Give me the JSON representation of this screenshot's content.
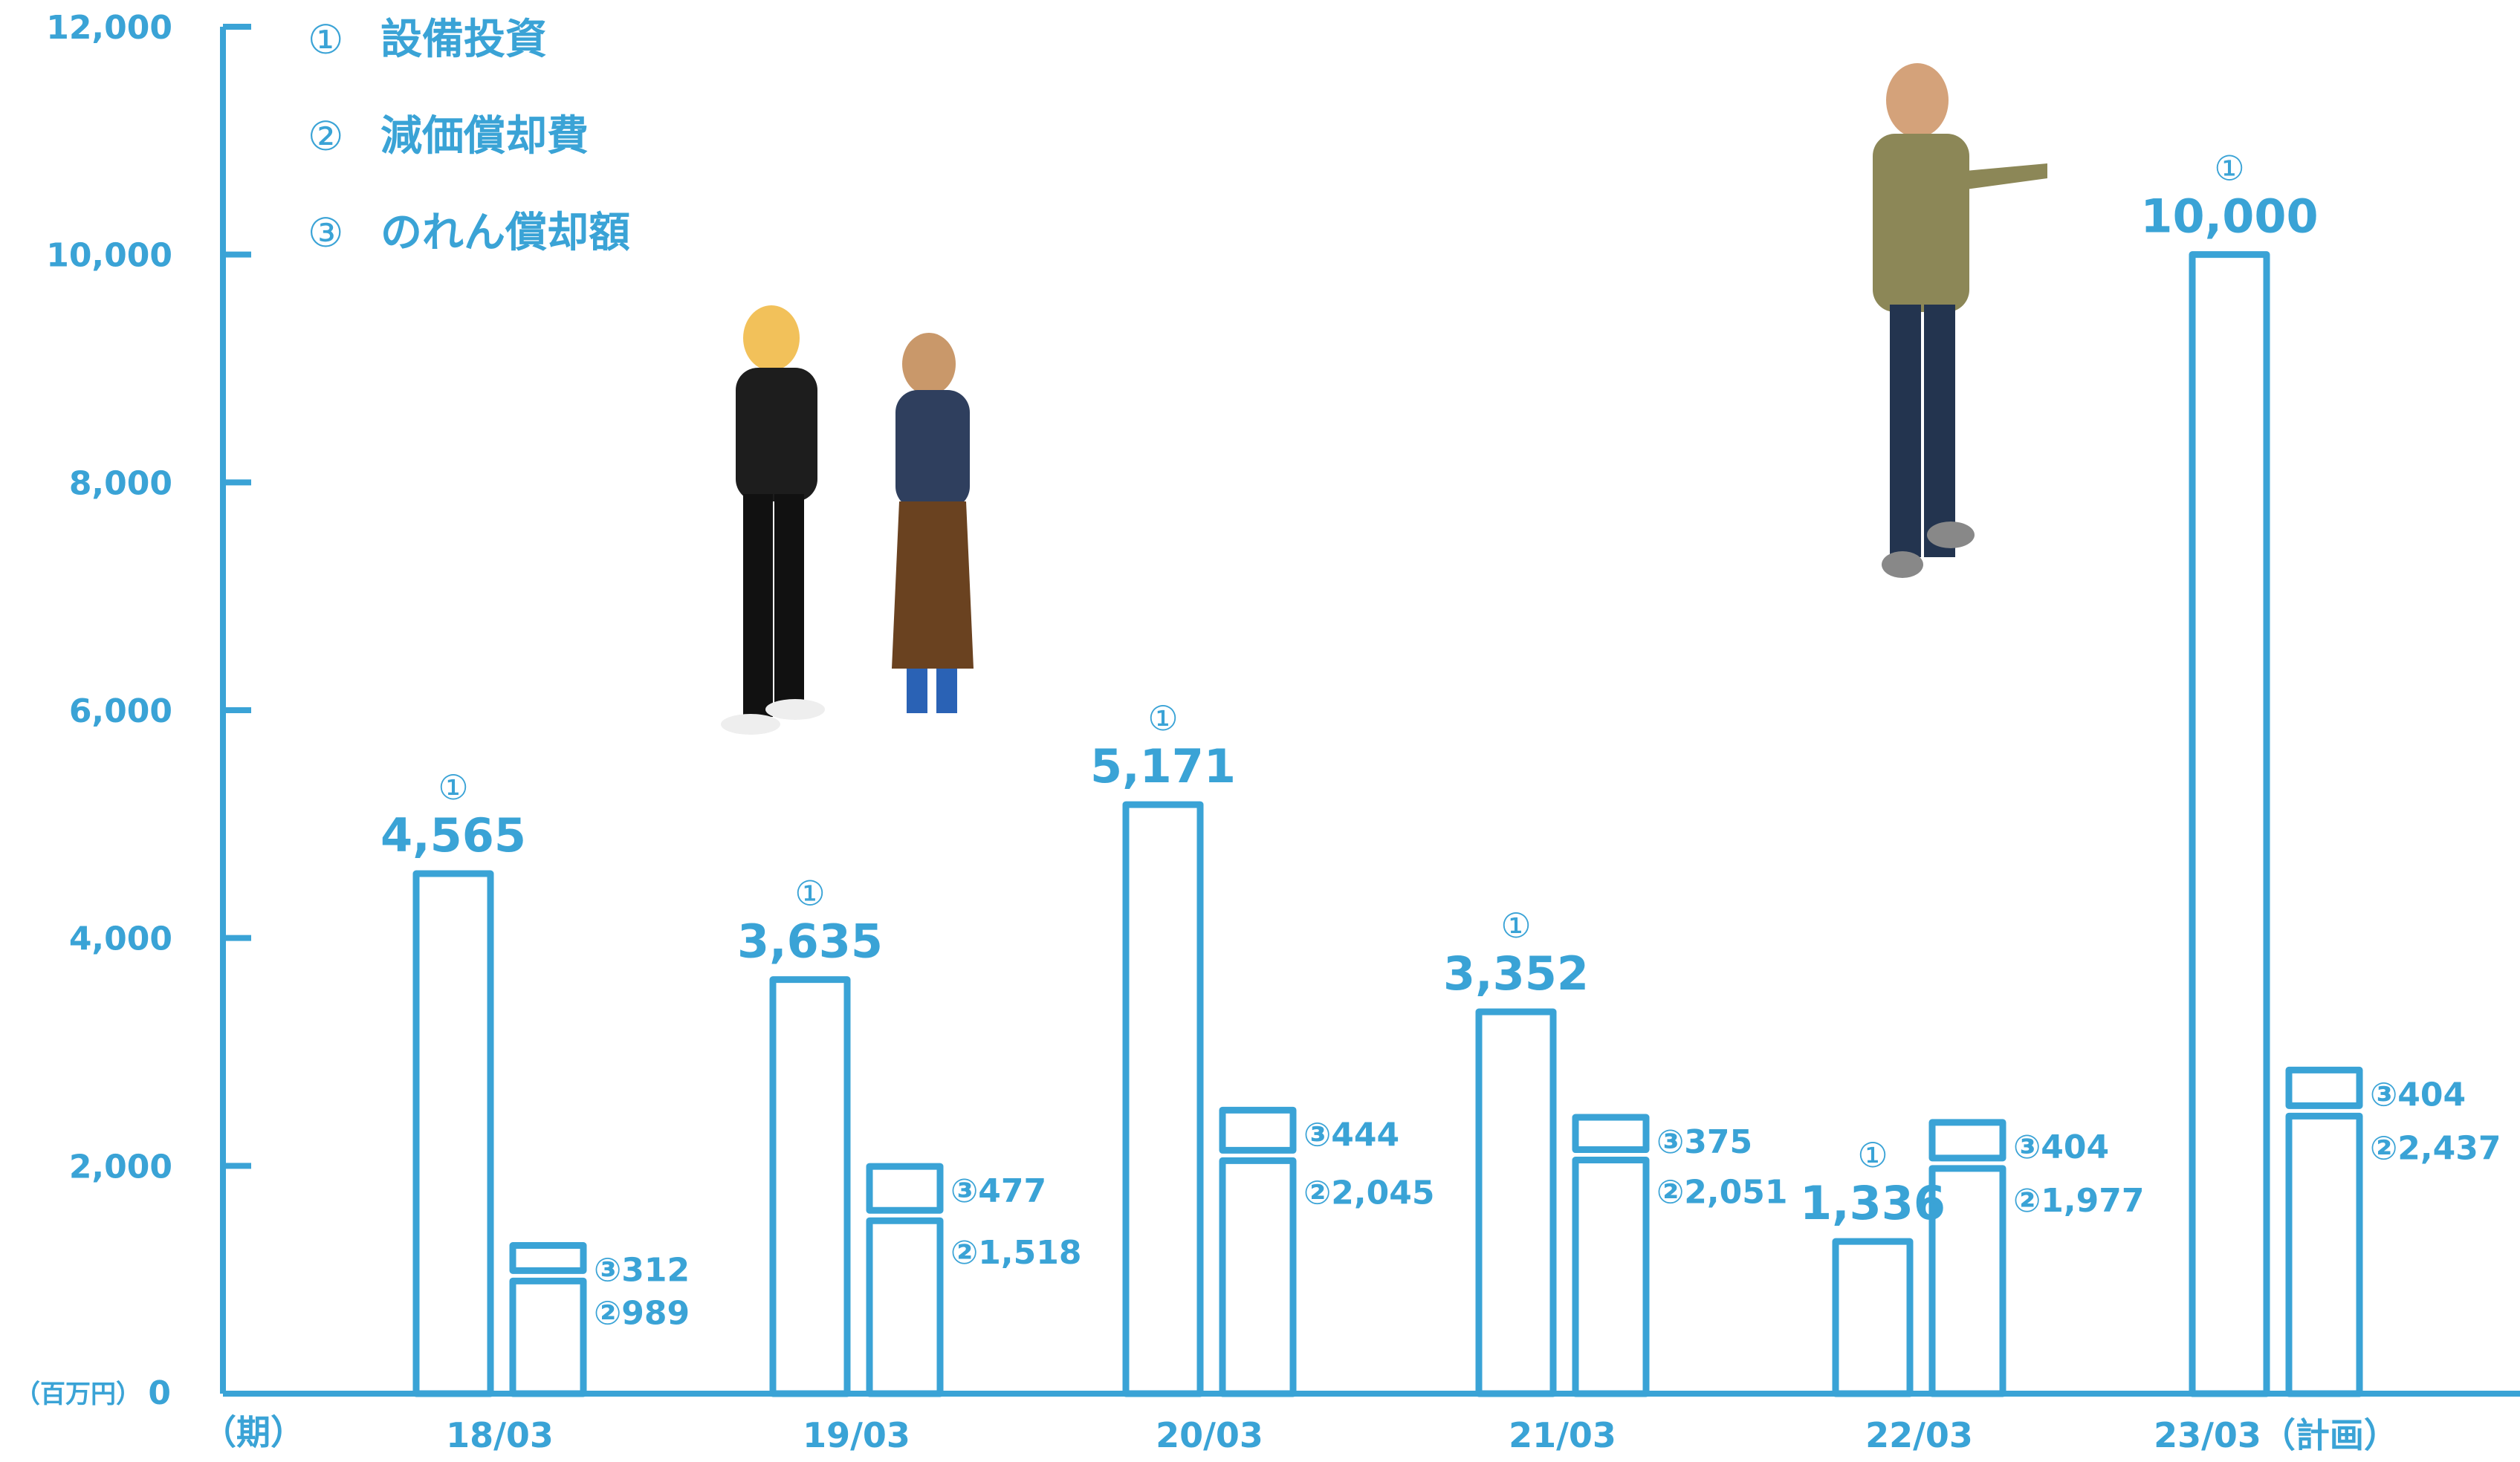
{
  "chart_data": {
    "type": "bar",
    "unit_label": "（百万円）",
    "xaxis_label": "（期）",
    "ylim": [
      0,
      12000
    ],
    "yticks": [
      "0",
      "2,000",
      "4,000",
      "6,000",
      "8,000",
      "10,000",
      "12,000"
    ],
    "categories": [
      "18/03",
      "19/03",
      "20/03",
      "21/03",
      "22/03",
      "23/03（計画）"
    ],
    "legend": [
      {
        "marker": "①",
        "label": "設備投資"
      },
      {
        "marker": "②",
        "label": "減価償却費"
      },
      {
        "marker": "③",
        "label": "のれん償却額"
      }
    ],
    "series": [
      {
        "marker": "①",
        "name": "設備投資",
        "values": [
          4565,
          3635,
          5171,
          3352,
          1336,
          10000
        ],
        "labels": [
          "4,565",
          "3,635",
          "5,171",
          "3,352",
          "1,336",
          "10,000"
        ]
      },
      {
        "marker": "②",
        "name": "減価償却費",
        "values": [
          989,
          1518,
          2045,
          2051,
          1977,
          2437
        ],
        "labels": [
          "989",
          "1,518",
          "2,045",
          "2,051",
          "1,977",
          "2,437"
        ]
      },
      {
        "marker": "③",
        "name": "のれん償却額",
        "values": [
          312,
          477,
          444,
          375,
          404,
          404
        ],
        "labels": [
          "312",
          "477",
          "444",
          "375",
          "404",
          "404"
        ]
      }
    ],
    "colors": {
      "accent": "#3aa3d6"
    }
  }
}
